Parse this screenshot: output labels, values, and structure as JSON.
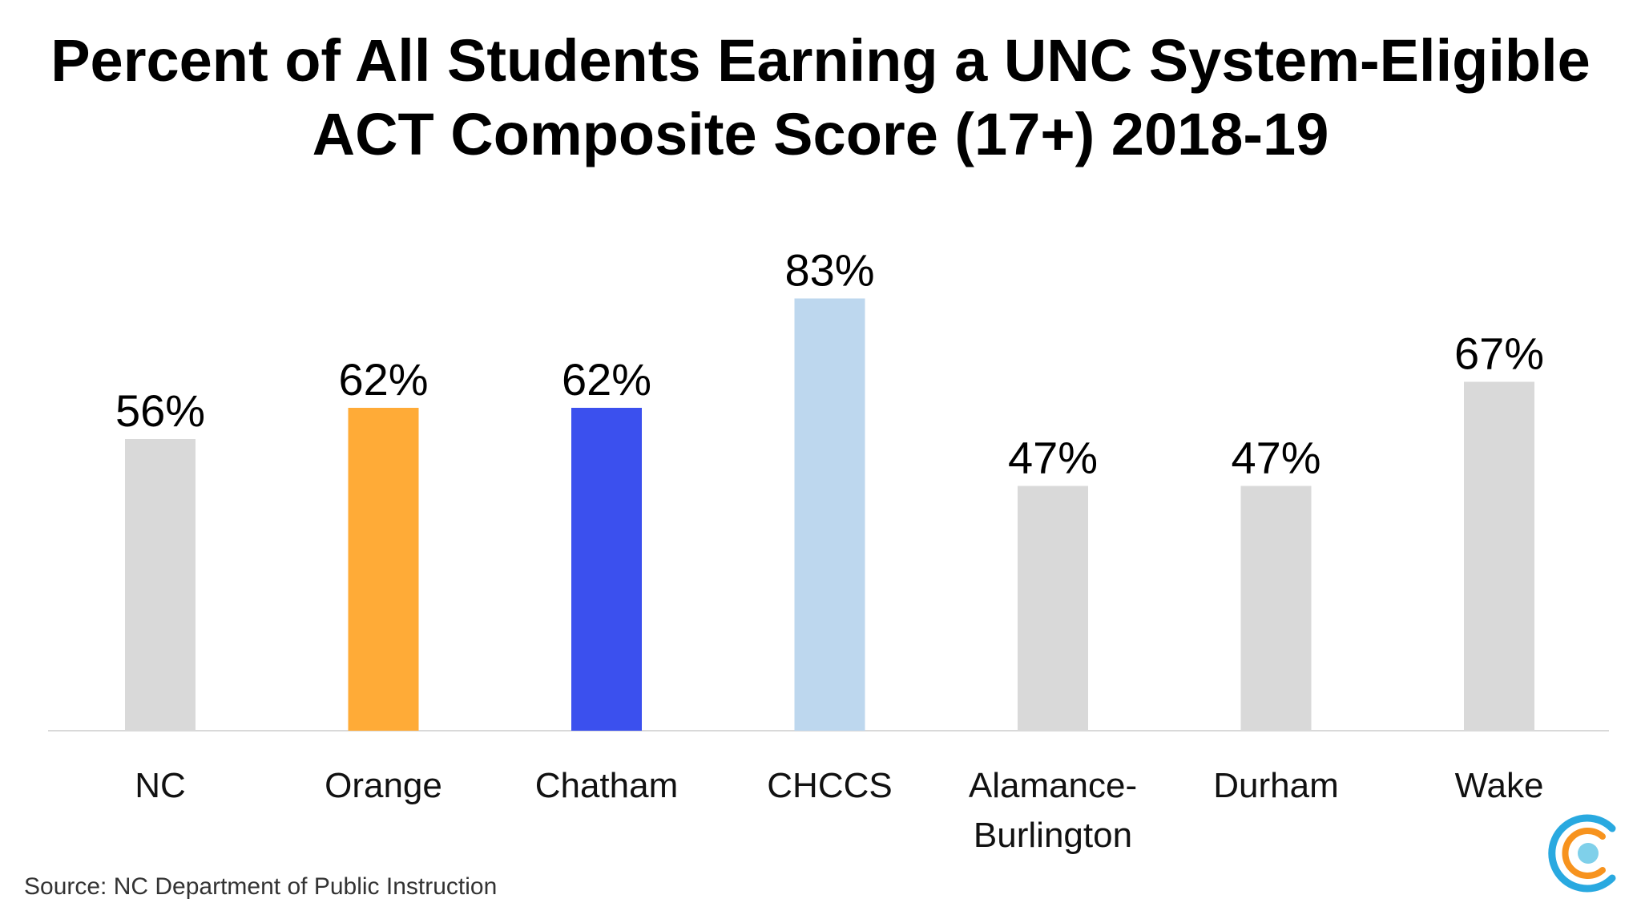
{
  "title": {
    "line1": "Percent of All Students Earning a UNC System-Eligible",
    "line2": "ACT Composite Score (17+) 2018-19"
  },
  "source": "Source: NC Department of Public Instruction",
  "logo": {
    "icon": "concentric-circles-logo",
    "colors": [
      "#29a9e0",
      "#f7931e",
      "#7fd0ea"
    ]
  },
  "chart_data": {
    "type": "bar",
    "title": "Percent of All Students Earning a UNC System-Eligible ACT Composite Score (17+) 2018-19",
    "categories": [
      [
        "NC"
      ],
      [
        "Orange"
      ],
      [
        "Chatham"
      ],
      [
        "CHCCS"
      ],
      [
        "Alamance-",
        "Burlington"
      ],
      [
        "Durham"
      ],
      [
        "Wake"
      ]
    ],
    "values": [
      56,
      62,
      62,
      83,
      47,
      47,
      67
    ],
    "value_labels": [
      "56%",
      "62%",
      "62%",
      "83%",
      "47%",
      "47%",
      "67%"
    ],
    "colors": [
      "#d9d9d9",
      "#ffab37",
      "#3b50ee",
      "#bdd7ee",
      "#d9d9d9",
      "#d9d9d9",
      "#d9d9d9"
    ],
    "unit": "%",
    "ylim": [
      0,
      100
    ],
    "grid": false,
    "legend": "none"
  }
}
